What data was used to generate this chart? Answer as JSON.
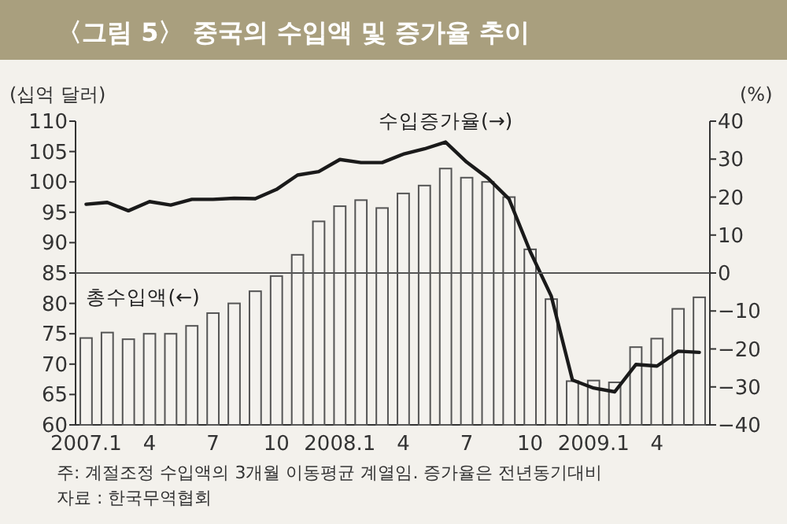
{
  "chart_data": {
    "type": "bar",
    "title": "〈그림 5〉 중국의 수입액 및 증가율 추이",
    "ylabel": "(십억 달러)",
    "y2label": "(%)",
    "categories": [
      "2007.1",
      null,
      null,
      "4",
      null,
      null,
      "7",
      null,
      null,
      "10",
      null,
      null,
      "2008.1",
      null,
      null,
      "4",
      null,
      null,
      "7",
      null,
      null,
      "10",
      null,
      null,
      "2009.1",
      null,
      null,
      "4",
      null,
      null
    ],
    "series": [
      {
        "name": "총수입액(←)",
        "color": "#f4f2ee",
        "values": [
          74.3,
          75.2,
          74.1,
          75,
          75,
          76.3,
          78.4,
          80,
          82,
          84.5,
          88,
          93.5,
          96,
          97,
          95.7,
          98.1,
          99.4,
          102.2,
          100.7,
          100,
          97.5,
          88.9,
          80.7,
          67.2,
          67.3,
          67,
          72.8,
          74.2,
          79.1,
          81
        ]
      },
      {
        "name": "수입증가율(→)",
        "type": "line",
        "axis": "y2",
        "color": "#1a1a1a",
        "values": [
          18.1,
          18.6,
          16.4,
          18.8,
          17.9,
          19.4,
          19.4,
          19.7,
          19.6,
          22,
          25.8,
          26.7,
          29.9,
          29.1,
          29.1,
          31.3,
          32.7,
          34.5,
          29.2,
          25,
          19.5,
          5.7,
          -6.1,
          -28.2,
          -30.3,
          -31.3,
          -24.1,
          -24.5,
          -20.6,
          -20.9
        ]
      }
    ],
    "ylim": [
      60,
      110
    ],
    "yticks": [
      60,
      65,
      70,
      75,
      80,
      85,
      90,
      95,
      100,
      105,
      110
    ],
    "y2lim": [
      -40,
      40
    ],
    "y2ticks": [
      {
        "value": -40,
        "label": "−40"
      },
      {
        "value": -30,
        "label": "−30"
      },
      {
        "value": -20,
        "label": "−20"
      },
      {
        "value": -10,
        "label": "−10"
      },
      0,
      10,
      20,
      30,
      40
    ],
    "ref_lines": [
      {
        "axis": "y2",
        "value": 0,
        "color": "#555555"
      }
    ],
    "grid": false,
    "annotations": [
      "주: 계절조정 수입액의 3개월 이동평균 계열임. 증가율은 전년동기대비",
      "자료 : 한국무역협회"
    ]
  }
}
